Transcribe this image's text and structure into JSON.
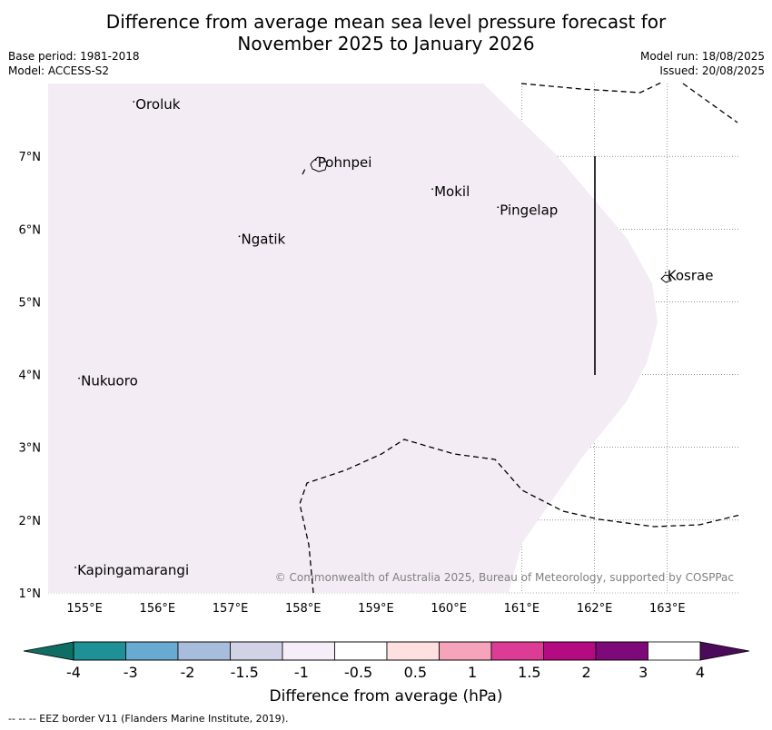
{
  "title": {
    "line1": "Difference from average mean sea level pressure forecast for",
    "line2": "November 2025 to January 2026"
  },
  "meta_left": {
    "base_period": "Base period: 1981-2018",
    "model": "Model: ACCESS-S2"
  },
  "meta_right": {
    "model_run": "Model run: 18/08/2025",
    "issued": "Issued: 20/08/2025"
  },
  "map": {
    "lon_range": [
      154.5,
      164.0
    ],
    "lat_range": [
      1.0,
      8.0
    ],
    "lon_ticks": [
      "155°E",
      "156°E",
      "157°E",
      "158°E",
      "159°E",
      "160°E",
      "161°E",
      "162°E",
      "163°E"
    ],
    "lat_ticks": [
      "1°N",
      "2°N",
      "3°N",
      "4°N",
      "5°N",
      "6°N",
      "7°N"
    ],
    "places": [
      {
        "name": "Oroluk",
        "lon": 155.7,
        "lat": 7.65
      },
      {
        "name": "Pohnpei",
        "lon": 158.2,
        "lat": 6.85
      },
      {
        "name": "Mokil",
        "lon": 159.8,
        "lat": 6.45
      },
      {
        "name": "Pingelap",
        "lon": 160.7,
        "lat": 6.2
      },
      {
        "name": "Ngatik",
        "lon": 157.15,
        "lat": 5.8
      },
      {
        "name": "Kosrae",
        "lon": 163.0,
        "lat": 5.3
      },
      {
        "name": "Nukuoro",
        "lon": 154.95,
        "lat": 3.85
      },
      {
        "name": "Kapingamarangi",
        "lon": 154.9,
        "lat": 1.25
      }
    ],
    "anomaly_fill_color": "#f4ecf5",
    "copyright": "© Commonwealth of Australia 2025, Bureau of Meteorology, supported by COSPPac"
  },
  "colorbar": {
    "title": "Difference from average (hPa)",
    "tick_labels": [
      "-4",
      "-3",
      "-2",
      "-1.5",
      "-1",
      "-0.5",
      "0.5",
      "1",
      "1.5",
      "2",
      "3",
      "4"
    ],
    "colors": [
      "#0f6e64",
      "#1e9196",
      "#69aad2",
      "#a8bcdc",
      "#d2d2e6",
      "#f5eef8",
      "#ffffff",
      "#ffe0e0",
      "#f5a4bc",
      "#dc3c96",
      "#b40a82",
      "#7d0a78",
      "#4b0a5a"
    ]
  },
  "footer": "--  --  -- EEZ border V11 (Flanders Marine Institute, 2019)."
}
